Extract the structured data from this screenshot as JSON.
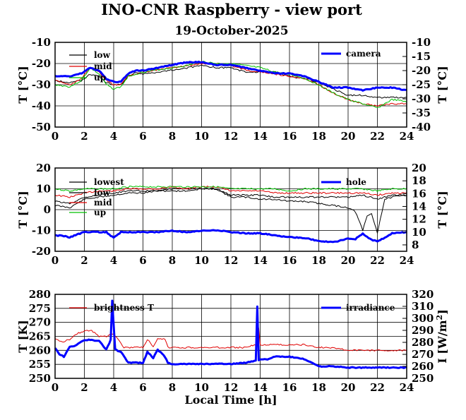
{
  "title": "INO-CNR Raspberry - view port",
  "subtitle": "19-October-2025",
  "colors": {
    "low": "#000000",
    "mid": "#e00000",
    "up": "#00c000",
    "camera": "#0000ff",
    "lowest": "#000000",
    "brightness": "#e00000",
    "irradiance": "#0000ff"
  },
  "chart_data": [
    {
      "type": "line",
      "title": "",
      "xlabel": "",
      "ylabel": "T [°C]",
      "ylabel_right": "T [°C]",
      "xlim": [
        0,
        24
      ],
      "ylim": [
        -50,
        -10
      ],
      "ylim_right": [
        -40,
        -10
      ],
      "xticks": [
        "0",
        "2",
        "4",
        "6",
        "8",
        "10",
        "12",
        "14",
        "16",
        "18",
        "20",
        "22",
        "24"
      ],
      "yticks": [
        "-50",
        "-40",
        "-30",
        "-20",
        "-10"
      ],
      "yticks_right": [
        "-40",
        "-35",
        "-30",
        "-25",
        "-20",
        "-15",
        "-10"
      ],
      "legend_left": [
        "low",
        "mid",
        "up"
      ],
      "legend_right": [
        "camera"
      ],
      "series": [
        {
          "name": "low",
          "axis": "left",
          "color": "#000000",
          "x": [
            0,
            1,
            1.8,
            2.4,
            3,
            3.5,
            4,
            4.5,
            5,
            5.5,
            6,
            7,
            8,
            9,
            10,
            11,
            12,
            13,
            14,
            15,
            16,
            17,
            18,
            19,
            20,
            21,
            22,
            23,
            24
          ],
          "y": [
            -28,
            -29,
            -28,
            -25,
            -26,
            -29,
            -30,
            -30,
            -26,
            -24,
            -25,
            -24,
            -23,
            -22,
            -21,
            -22,
            -22,
            -24,
            -24,
            -24,
            -26,
            -27,
            -29,
            -32,
            -35,
            -35,
            -36,
            -36,
            -36
          ]
        },
        {
          "name": "mid",
          "axis": "left",
          "color": "#e00000",
          "x": [
            0,
            1,
            1.8,
            2.4,
            3,
            3.5,
            4,
            4.5,
            5,
            5.5,
            6,
            7,
            8,
            9,
            10,
            11,
            12,
            13,
            14,
            15,
            16,
            17,
            18,
            19,
            20,
            21,
            22,
            23,
            24
          ],
          "y": [
            -28,
            -30,
            -27,
            -22,
            -24,
            -28,
            -30,
            -30,
            -26,
            -25,
            -24,
            -23,
            -22,
            -21,
            -20,
            -20,
            -21,
            -23,
            -24,
            -25,
            -26,
            -27,
            -30,
            -34,
            -37,
            -39,
            -40,
            -39,
            -39
          ]
        },
        {
          "name": "up",
          "axis": "left",
          "color": "#00c000",
          "x": [
            0,
            1,
            1.8,
            2.4,
            3,
            3.5,
            4,
            4.5,
            5,
            5.5,
            6,
            7,
            8,
            9,
            10,
            11,
            12,
            13,
            14,
            15,
            16,
            17,
            18,
            19,
            20,
            21,
            22,
            23,
            24
          ],
          "y": [
            -30,
            -31,
            -28,
            -22,
            -25,
            -30,
            -32,
            -31,
            -26,
            -25,
            -24,
            -23,
            -22,
            -21,
            -19,
            -20,
            -20,
            -21,
            -22,
            -24,
            -25,
            -27,
            -30,
            -34,
            -37,
            -39,
            -41,
            -37,
            -38
          ]
        },
        {
          "name": "camera",
          "axis": "right",
          "color": "#0000ff",
          "x": [
            0,
            1,
            1.8,
            2.4,
            3,
            3.5,
            4,
            4.5,
            5,
            5.5,
            6,
            7,
            8,
            9,
            10,
            11,
            12,
            13,
            14,
            15,
            16,
            17,
            18,
            19,
            20,
            21,
            22,
            23,
            24
          ],
          "y": [
            -22,
            -22,
            -21,
            -19,
            -20,
            -23,
            -24,
            -24,
            -21,
            -20,
            -20,
            -19,
            -18,
            -17,
            -17,
            -18,
            -18,
            -19,
            -20,
            -21,
            -21,
            -22,
            -24,
            -26,
            -26,
            -27,
            -26,
            -26,
            -27
          ]
        }
      ]
    },
    {
      "type": "line",
      "title": "",
      "xlabel": "",
      "ylabel": "T [°C]",
      "ylabel_right": "T [°C]",
      "xlim": [
        0,
        24
      ],
      "ylim": [
        -20,
        20
      ],
      "ylim_right": [
        7,
        20
      ],
      "xticks": [
        "0",
        "2",
        "4",
        "6",
        "8",
        "10",
        "12",
        "14",
        "16",
        "18",
        "20",
        "22",
        "24"
      ],
      "yticks": [
        "-20",
        "-10",
        "0",
        "10",
        "20"
      ],
      "yticks_right": [
        "8",
        "10",
        "12",
        "14",
        "16",
        "18",
        "20"
      ],
      "legend_left": [
        "lowest",
        "low",
        "mid",
        "up"
      ],
      "legend_right": [
        "hole"
      ],
      "series": [
        {
          "name": "lowest",
          "axis": "left",
          "color": "#000000",
          "x": [
            0,
            1,
            2,
            3,
            4,
            5,
            6,
            7,
            8,
            9,
            10,
            11,
            12,
            13,
            14,
            15,
            16,
            17,
            18,
            19,
            20,
            20.5,
            21,
            21.3,
            21.6,
            22,
            22.5,
            23,
            24
          ],
          "y": [
            2,
            1,
            5,
            6,
            7,
            8,
            8,
            9,
            9,
            9,
            10,
            10,
            6,
            6,
            5,
            5,
            4,
            4,
            3,
            2,
            1,
            -1,
            -10,
            -3,
            -2,
            -11,
            5,
            6,
            7
          ]
        },
        {
          "name": "low",
          "axis": "left",
          "color": "#000000",
          "x": [
            0,
            1,
            2,
            3,
            4,
            5,
            6,
            7,
            8,
            9,
            10,
            11,
            12,
            13,
            14,
            15,
            16,
            17,
            18,
            19,
            20,
            21,
            22,
            23,
            24
          ],
          "y": [
            4,
            3,
            6,
            7,
            8,
            9,
            9,
            9,
            10,
            10,
            10,
            10,
            7,
            7,
            7,
            6,
            6,
            6,
            6,
            6,
            6,
            7,
            5,
            7,
            7
          ]
        },
        {
          "name": "mid",
          "axis": "left",
          "color": "#e00000",
          "x": [
            0,
            1,
            2,
            3,
            4,
            5,
            6,
            7,
            8,
            9,
            10,
            11,
            12,
            13,
            14,
            15,
            16,
            17,
            18,
            19,
            20,
            21,
            22,
            23,
            24
          ],
          "y": [
            7,
            6,
            8,
            9,
            9,
            10,
            10,
            10,
            11,
            10,
            11,
            11,
            9,
            9,
            9,
            8,
            8,
            8,
            8,
            8,
            8,
            8,
            7,
            8,
            8
          ]
        },
        {
          "name": "up",
          "axis": "left",
          "color": "#00c000",
          "x": [
            0,
            1,
            2,
            3,
            4,
            5,
            6,
            7,
            8,
            9,
            10,
            11,
            12,
            13,
            14,
            15,
            16,
            17,
            18,
            19,
            20,
            21,
            22,
            23,
            24
          ],
          "y": [
            10,
            9,
            10,
            10,
            10,
            11,
            11,
            11,
            11,
            11,
            11,
            11,
            10,
            10,
            10,
            10,
            9,
            10,
            10,
            10,
            10,
            10,
            9,
            10,
            10
          ]
        },
        {
          "name": "hole",
          "axis": "right",
          "color": "#0000ff",
          "x": [
            0,
            0.5,
            1,
            2,
            3,
            3.5,
            4,
            4.5,
            5,
            6,
            7,
            8,
            9,
            10,
            11,
            12,
            13,
            14,
            15,
            16,
            17,
            18,
            19,
            20,
            20.5,
            21,
            21.5,
            22,
            23,
            24
          ],
          "y": [
            9.5,
            9.4,
            9.2,
            10,
            10,
            10,
            9.1,
            10,
            10,
            10,
            10,
            10.2,
            10,
            10.2,
            10.3,
            10,
            9.8,
            9.8,
            9.5,
            9.2,
            9.1,
            8.6,
            8.4,
            9,
            8.9,
            9.8,
            8.9,
            8.5,
            9.8,
            10
          ]
        }
      ]
    },
    {
      "type": "line",
      "title": "",
      "xlabel": "Local Time [h]",
      "ylabel": "T [K]",
      "ylabel_right": "I [W/m",
      "ylabel_right_sup": "2",
      "ylabel_right_end": "]",
      "xlim": [
        0,
        24
      ],
      "ylim": [
        250,
        280
      ],
      "ylim_right": [
        250,
        320
      ],
      "xticks": [
        "0",
        "2",
        "4",
        "6",
        "8",
        "10",
        "12",
        "14",
        "16",
        "18",
        "20",
        "22",
        "24"
      ],
      "yticks": [
        "250",
        "255",
        "260",
        "265",
        "270",
        "275",
        "280"
      ],
      "yticks_right": [
        "250",
        "260",
        "270",
        "280",
        "290",
        "300",
        "310",
        "320"
      ],
      "legend_left": [
        "brightness T"
      ],
      "legend_right": [
        "irradiance"
      ],
      "series": [
        {
          "name": "brightness T",
          "axis": "left",
          "color": "#e00000",
          "x": [
            0,
            0.5,
            1,
            1.5,
            2,
            2.5,
            3,
            3.5,
            3.8,
            4,
            4.3,
            4.7,
            5,
            6,
            6.3,
            6.7,
            7,
            7.5,
            7.7,
            8,
            9,
            10,
            11,
            12,
            13,
            13.7,
            13.9,
            14,
            15,
            16,
            17,
            18,
            19,
            20,
            21,
            22,
            23,
            24
          ],
          "y": [
            264,
            263,
            264,
            266,
            267,
            267,
            265,
            265,
            266,
            266,
            264,
            261,
            261,
            261,
            264,
            261,
            264,
            264,
            261,
            261,
            261,
            261,
            261,
            261,
            261,
            262,
            268,
            262,
            262,
            262,
            262,
            261,
            261,
            260,
            260,
            260,
            260,
            260
          ]
        },
        {
          "name": "irradiance",
          "axis": "right",
          "color": "#0000ff",
          "x": [
            0,
            0.3,
            0.6,
            1,
            1.5,
            2,
            2.5,
            3,
            3.5,
            3.8,
            3.9,
            4.1,
            4.5,
            5,
            6,
            6.3,
            6.7,
            7,
            7.5,
            7.7,
            8,
            9,
            10,
            11,
            12,
            13,
            13.7,
            13.8,
            13.9,
            14,
            14.5,
            15,
            16,
            17,
            17.5,
            18,
            19,
            20,
            21,
            22,
            23,
            24
          ],
          "y": [
            275,
            270,
            268,
            276,
            278,
            282,
            282,
            281,
            274,
            282,
            315,
            274,
            272,
            263,
            263,
            272,
            267,
            274,
            268,
            263,
            262,
            262,
            262,
            262,
            262,
            263,
            265,
            310,
            265,
            266,
            266,
            268,
            268,
            266,
            263,
            260,
            260,
            259,
            259,
            259,
            259,
            259
          ]
        }
      ]
    }
  ]
}
